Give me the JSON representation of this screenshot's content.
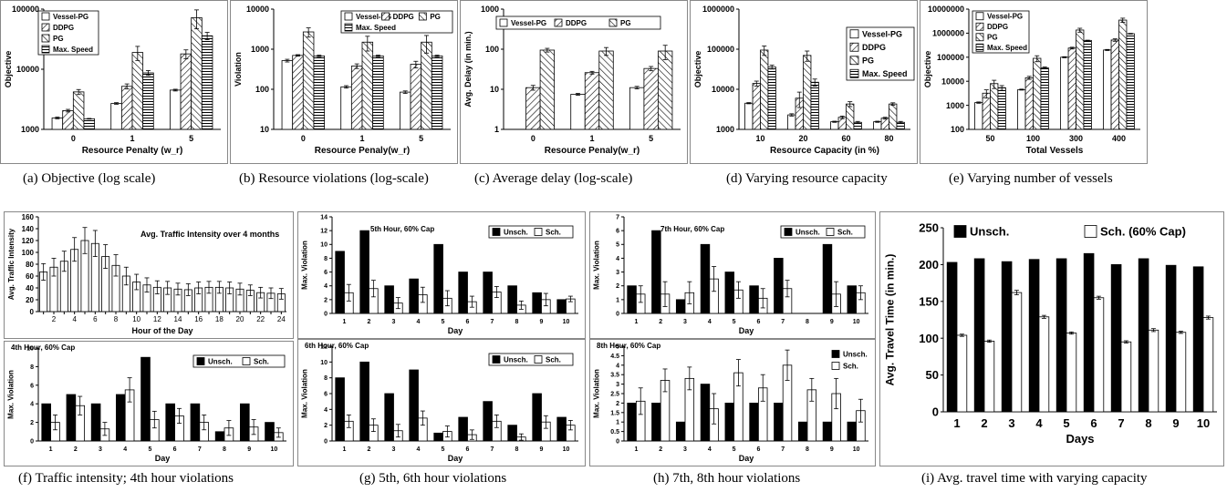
{
  "captions": {
    "a": "(a) Objective (log scale)",
    "b": "(b) Resource violations (log-scale)",
    "c": "(c) Average delay (log-scale)",
    "d": "(d) Varying resource capacity",
    "e": "(e) Varying number of vessels",
    "f": "(f) Traffic intensity; 4th hour violations",
    "g": "(g) 5th, 6th hour violations",
    "h": "(h) 7th, 8th hour violations",
    "i": "(i) Avg. travel time with varying capacity"
  },
  "colors": {
    "axis": "#000000",
    "bar_dark": "#000000",
    "bar_light": "#ffffff",
    "hatch": "#000000"
  },
  "chart_data": [
    {
      "id": "a",
      "type": "bar",
      "scale": "log",
      "ylim": [
        1000,
        100000
      ],
      "yticks": [
        "1000",
        "10000",
        "100000"
      ],
      "xlabel": "Resource Penalty (w_r)",
      "ylabel": "Objective",
      "categories": [
        "0",
        "1",
        "5"
      ],
      "legend_position": "top-left",
      "series": [
        {
          "name": "Vessel-PG",
          "pattern": "white",
          "values": [
            1550,
            2700,
            4500
          ],
          "err": [
            50,
            80,
            150
          ]
        },
        {
          "name": "DDPG",
          "pattern": "diag-left",
          "values": [
            2050,
            5200,
            18000
          ],
          "err": [
            100,
            500,
            3000
          ]
        },
        {
          "name": "PG",
          "pattern": "diag-right",
          "values": [
            4200,
            19000,
            72000
          ],
          "err": [
            400,
            5000,
            25000
          ]
        },
        {
          "name": "Max. Speed",
          "pattern": "horizontal",
          "values": [
            1500,
            8700,
            36000
          ],
          "err": [
            20,
            800,
            5000
          ]
        }
      ]
    },
    {
      "id": "b",
      "type": "bar",
      "scale": "log",
      "ylim": [
        10,
        10000
      ],
      "yticks": [
        "10",
        "100",
        "1000",
        "10000"
      ],
      "xlabel": "Resource Penaly(w_r)",
      "ylabel": "Violation",
      "categories": [
        "0",
        "1",
        "5"
      ],
      "legend_position": "top-right",
      "series": [
        {
          "name": "Vessel-PG",
          "pattern": "white",
          "values": [
            520,
            115,
            85
          ],
          "err": [
            40,
            8,
            6
          ]
        },
        {
          "name": "DDPG",
          "pattern": "diag-left",
          "values": [
            700,
            380,
            420
          ],
          "err": [
            30,
            50,
            80
          ]
        },
        {
          "name": "PG",
          "pattern": "diag-right",
          "values": [
            2700,
            1500,
            1500
          ],
          "err": [
            700,
            600,
            700
          ]
        },
        {
          "name": "Max. Speed",
          "pattern": "horizontal",
          "values": [
            680,
            680,
            680
          ],
          "err": [
            30,
            30,
            30
          ]
        }
      ]
    },
    {
      "id": "c",
      "type": "bar",
      "scale": "log",
      "ylim": [
        1,
        1000
      ],
      "yticks": [
        "1",
        "10",
        "100",
        "1000"
      ],
      "xlabel": "Resource Penaly(w_r)",
      "ylabel": "Avg. Delay (in min.)",
      "categories": [
        "0",
        "1",
        "5"
      ],
      "legend_position": "top",
      "series": [
        {
          "name": "Vessel-PG",
          "pattern": "white",
          "values": [
            0,
            7.5,
            11
          ],
          "err": [
            0,
            0.4,
            0.8
          ]
        },
        {
          "name": "DDPG",
          "pattern": "diag-left",
          "values": [
            11,
            26,
            33
          ],
          "err": [
            1.5,
            2,
            4
          ]
        },
        {
          "name": "PG",
          "pattern": "diag-right",
          "values": [
            95,
            90,
            90
          ],
          "err": [
            10,
            20,
            35
          ]
        }
      ]
    },
    {
      "id": "d",
      "type": "bar",
      "scale": "log",
      "ylim": [
        1000,
        1000000
      ],
      "yticks": [
        "1000",
        "10000",
        "100000",
        "1000000"
      ],
      "xlabel": "Resource Capacity (in %)",
      "ylabel": "Objective",
      "categories": [
        "10",
        "20",
        "60",
        "80"
      ],
      "legend_position": "top-right",
      "series": [
        {
          "name": "Vessel-PG",
          "pattern": "white",
          "values": [
            4500,
            2300,
            1550,
            1550
          ],
          "err": [
            150,
            150,
            50,
            50
          ]
        },
        {
          "name": "DDPG",
          "pattern": "diag-left",
          "values": [
            14000,
            6000,
            2000,
            1900
          ],
          "err": [
            2000,
            2500,
            150,
            100
          ]
        },
        {
          "name": "PG",
          "pattern": "diag-right",
          "values": [
            95000,
            70000,
            4300,
            4300
          ],
          "err": [
            25000,
            20000,
            600,
            300
          ]
        },
        {
          "name": "Max. Speed",
          "pattern": "horizontal",
          "values": [
            36000,
            15000,
            1500,
            1500
          ],
          "err": [
            4000,
            3000,
            80,
            80
          ]
        }
      ]
    },
    {
      "id": "e",
      "type": "bar",
      "scale": "log",
      "ylim": [
        100,
        10000000
      ],
      "yticks": [
        "100",
        "1000",
        "10000",
        "100000",
        "1000000",
        "10000000"
      ],
      "xlabel": "Total Vessels",
      "ylabel": "Objective",
      "categories": [
        "50",
        "100",
        "300",
        "400"
      ],
      "legend_position": "top-left",
      "series": [
        {
          "name": "Vessel-PG",
          "pattern": "white",
          "values": [
            1300,
            4500,
            100000,
            200000
          ],
          "err": [
            80,
            200,
            5000,
            10000
          ]
        },
        {
          "name": "DDPG",
          "pattern": "diag-left",
          "values": [
            3200,
            14000,
            240000,
            520000
          ],
          "err": [
            1200,
            2000,
            20000,
            60000
          ]
        },
        {
          "name": "PG",
          "pattern": "diag-right",
          "values": [
            8000,
            90000,
            1350000,
            3500000
          ],
          "err": [
            3000,
            25000,
            250000,
            700000
          ]
        },
        {
          "name": "Max. Speed",
          "pattern": "horizontal",
          "values": [
            5400,
            36000,
            500000,
            950000
          ],
          "err": [
            1200,
            3000,
            10000,
            30000
          ]
        }
      ]
    },
    {
      "id": "f1",
      "type": "bar",
      "scale": "linear",
      "ylim": [
        0,
        160
      ],
      "yticks": [
        "0",
        "20",
        "40",
        "60",
        "80",
        "100",
        "120",
        "140",
        "160"
      ],
      "xlabel": "Hour of the Day",
      "ylabel": "Avg. Traffic Intensity",
      "annotation": "Avg. Traffic Intensity over 4 months",
      "xticklabels": [
        "2",
        "4",
        "6",
        "8",
        "10",
        "12",
        "14",
        "16",
        "18",
        "20",
        "22",
        "24"
      ],
      "categories": [
        "1",
        "2",
        "3",
        "4",
        "5",
        "6",
        "7",
        "8",
        "9",
        "10",
        "11",
        "12",
        "13",
        "14",
        "15",
        "16",
        "17",
        "18",
        "19",
        "20",
        "21",
        "22",
        "23",
        "24"
      ],
      "series": [
        {
          "name": "",
          "pattern": "white",
          "values": [
            67,
            75,
            85,
            105,
            120,
            115,
            93,
            78,
            60,
            50,
            45,
            41,
            40,
            38,
            37,
            40,
            41,
            41,
            40,
            38,
            36,
            32,
            31,
            30
          ],
          "err": [
            14,
            15,
            17,
            20,
            22,
            22,
            20,
            18,
            15,
            13,
            12,
            11,
            11,
            10,
            10,
            10,
            10,
            10,
            10,
            10,
            9,
            9,
            9,
            9
          ]
        }
      ]
    },
    {
      "id": "f2",
      "type": "bar",
      "scale": "linear",
      "ylim": [
        0,
        10
      ],
      "yticks": [
        "0",
        "2",
        "4",
        "6",
        "8",
        "10"
      ],
      "xlabel": "Day",
      "ylabel": "Max. Violation",
      "annotation": "4th Hour, 60% Cap",
      "categories": [
        "1",
        "2",
        "3",
        "4",
        "5",
        "6",
        "7",
        "8",
        "9",
        "10"
      ],
      "legend_position": "top-right",
      "series": [
        {
          "name": "Unsch.",
          "pattern": "black",
          "values": [
            4,
            5,
            4,
            5,
            9,
            4,
            4,
            1,
            4,
            2
          ],
          "err": null
        },
        {
          "name": "Sch.",
          "pattern": "white",
          "values": [
            2,
            3.8,
            1.3,
            5.5,
            2.3,
            2.7,
            2.0,
            1.4,
            1.5,
            0.9
          ],
          "err": [
            0.8,
            1.0,
            0.7,
            1.3,
            0.9,
            0.8,
            0.8,
            0.8,
            0.8,
            0.5
          ]
        }
      ]
    },
    {
      "id": "g1",
      "type": "bar",
      "scale": "linear",
      "ylim": [
        0,
        14
      ],
      "yticks": [
        "0",
        "2",
        "4",
        "6",
        "8",
        "10",
        "12",
        "14"
      ],
      "xlabel": "Day",
      "ylabel": "Max. Violation",
      "annotation": "5th Hour, 60% Cap",
      "categories": [
        "1",
        "2",
        "3",
        "4",
        "5",
        "6",
        "7",
        "8",
        "9",
        "10"
      ],
      "legend_position": "top-right",
      "series": [
        {
          "name": "Unsch.",
          "pattern": "black",
          "values": [
            9,
            12,
            4,
            5,
            10,
            6,
            6,
            4,
            3,
            2
          ],
          "err": null
        },
        {
          "name": "Sch.",
          "pattern": "white",
          "values": [
            3,
            3.6,
            1.5,
            2.7,
            2.2,
            1.7,
            3.1,
            1.2,
            2.0,
            2.1
          ],
          "err": [
            1.2,
            1.2,
            0.8,
            1.1,
            1.1,
            0.8,
            0.8,
            0.6,
            0.9,
            0.4
          ]
        }
      ]
    },
    {
      "id": "g2",
      "type": "bar",
      "scale": "linear",
      "ylim": [
        0,
        12
      ],
      "yticks": [
        "0",
        "2",
        "4",
        "6",
        "8",
        "10",
        "12"
      ],
      "xlabel": "Day",
      "ylabel": "Max. Violation",
      "annotation": "6th Hour, 60% Cap",
      "categories": [
        "1",
        "2",
        "3",
        "4",
        "5",
        "6",
        "7",
        "8",
        "9",
        "10"
      ],
      "legend_position": "top-right",
      "series": [
        {
          "name": "Unsch.",
          "pattern": "black",
          "values": [
            8,
            10,
            6,
            9,
            1,
            3,
            5,
            2,
            6,
            3
          ],
          "err": null
        },
        {
          "name": "Sch.",
          "pattern": "white",
          "values": [
            2.5,
            2,
            1.3,
            2.9,
            1.2,
            0.8,
            2.5,
            0.5,
            2.4,
            2.0
          ],
          "err": [
            0.8,
            0.8,
            0.8,
            0.9,
            0.7,
            0.6,
            0.8,
            0.4,
            0.8,
            0.6
          ]
        }
      ]
    },
    {
      "id": "h1",
      "type": "bar",
      "scale": "linear",
      "ylim": [
        0,
        7
      ],
      "yticks": [
        "0",
        "1",
        "2",
        "3",
        "4",
        "5",
        "6",
        "7"
      ],
      "xlabel": "Day",
      "ylabel": "Max. Violation",
      "annotation": "7th Hour, 60% Cap",
      "categories": [
        "1",
        "2",
        "3",
        "4",
        "5",
        "6",
        "7",
        "8",
        "9",
        "10"
      ],
      "legend_position": "top-right",
      "series": [
        {
          "name": "Unsch.",
          "pattern": "black",
          "values": [
            2,
            6,
            1,
            5,
            3,
            2,
            4,
            0,
            5,
            2
          ],
          "err": null
        },
        {
          "name": "Sch.",
          "pattern": "white",
          "values": [
            1.4,
            1.4,
            1.5,
            2.5,
            1.7,
            1.1,
            1.8,
            0,
            1.4,
            1.5
          ],
          "err": [
            0.6,
            0.9,
            0.8,
            0.9,
            0.6,
            0.7,
            0.6,
            0.1,
            0.9,
            0.5
          ]
        }
      ]
    },
    {
      "id": "h2",
      "type": "bar",
      "scale": "linear",
      "ylim": [
        0,
        5
      ],
      "yticks": [
        "0",
        "0.5",
        "1",
        "1.5",
        "2",
        "2.5",
        "3",
        "3.5",
        "4",
        "4.5",
        "5"
      ],
      "xlabel": "Day",
      "ylabel": "Max. Violation",
      "annotation": "8th Hour, 60% Cap",
      "categories": [
        "1",
        "2",
        "3",
        "4",
        "5",
        "6",
        "7",
        "8",
        "9",
        "10"
      ],
      "legend_position": "top-right",
      "series": [
        {
          "name": "Unsch.",
          "pattern": "black",
          "values": [
            2,
            2,
            1,
            3,
            2,
            2,
            2,
            1,
            1,
            1
          ],
          "err": null
        },
        {
          "name": "Sch.",
          "pattern": "white",
          "values": [
            2.1,
            3.2,
            3.3,
            1.7,
            3.6,
            2.8,
            4.0,
            2.7,
            2.5,
            1.6
          ],
          "err": [
            0.7,
            0.6,
            0.6,
            0.8,
            0.7,
            0.7,
            0.8,
            0.6,
            0.8,
            0.6
          ]
        }
      ]
    },
    {
      "id": "i",
      "type": "bar",
      "scale": "linear",
      "ylim": [
        0,
        250
      ],
      "yticks": [
        "0",
        "50",
        "100",
        "150",
        "200",
        "250"
      ],
      "xlabel": "Days",
      "ylabel": "Avg. Travel Time (in min.)",
      "categories": [
        "1",
        "2",
        "3",
        "4",
        "5",
        "6",
        "7",
        "8",
        "9",
        "10"
      ],
      "legend_position": "top",
      "series": [
        {
          "name": "Unsch.",
          "pattern": "black",
          "values": [
            203,
            208,
            204,
            207,
            208,
            215,
            200,
            208,
            199,
            197
          ],
          "err": null
        },
        {
          "name": "Sch. (60% Cap)",
          "pattern": "white",
          "values": [
            104,
            96,
            162,
            129,
            107,
            155,
            95,
            111,
            108,
            128
          ],
          "err": [
            1.5,
            1.5,
            3,
            2,
            1.5,
            2,
            1.5,
            2,
            1.5,
            2
          ]
        }
      ]
    }
  ]
}
